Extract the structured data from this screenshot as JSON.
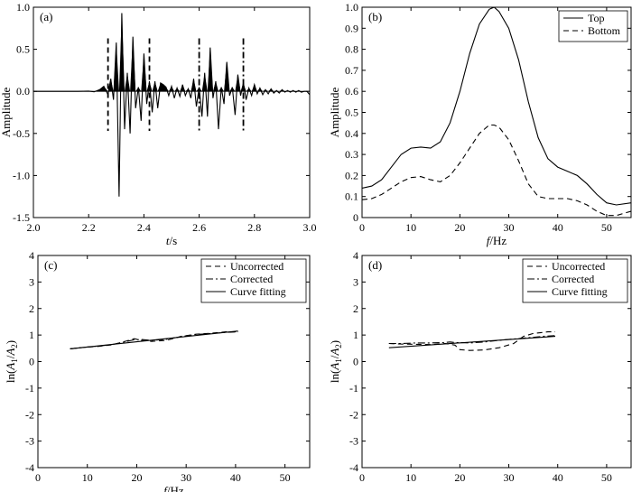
{
  "chart_data": [
    {
      "id": "a",
      "panel_label": "(a)",
      "type": "line",
      "title": "",
      "xlabel": "t/s",
      "ylabel": "Amplitude",
      "xlim": [
        2.0,
        3.0
      ],
      "ylim": [
        -1.5,
        1.0
      ],
      "xticks": [
        "2.0",
        "2.2",
        "2.4",
        "2.6",
        "2.8",
        "3.0"
      ],
      "yticks": [
        "-1.5",
        "-1.0",
        "-0.5",
        "0.0",
        "0.5",
        "1.0"
      ],
      "xtick_values": [
        2.0,
        2.2,
        2.4,
        2.6,
        2.8,
        3.0
      ],
      "ytick_values": [
        -1.5,
        -1.0,
        -0.5,
        0.0,
        0.5,
        1.0
      ],
      "grid": false,
      "series": [
        {
          "x": [
            2.0,
            2.16,
            2.2,
            2.22,
            2.24,
            2.255,
            2.27,
            2.28,
            2.29,
            2.3,
            2.31,
            2.32,
            2.33,
            2.34,
            2.35,
            2.36,
            2.37,
            2.38,
            2.39,
            2.4,
            2.41,
            2.42,
            2.43,
            2.44,
            2.45,
            2.46,
            2.47,
            2.48,
            2.49,
            2.5,
            2.51,
            2.52,
            2.53,
            2.54,
            2.55,
            2.56,
            2.57,
            2.58,
            2.59,
            2.6,
            2.61,
            2.62,
            2.63,
            2.64,
            2.65,
            2.66,
            2.67,
            2.68,
            2.69,
            2.7,
            2.71,
            2.72,
            2.73,
            2.74,
            2.75,
            2.76,
            2.77,
            2.78,
            2.79,
            2.8,
            2.81,
            2.82,
            2.83,
            2.84,
            2.85,
            2.86,
            2.87,
            2.88,
            2.89,
            2.9,
            2.91,
            2.92,
            2.93,
            2.94,
            2.95,
            2.96,
            2.97,
            2.98,
            2.99,
            3.0
          ],
          "y": [
            0.0,
            0.0,
            0.003,
            -0.005,
            0.02,
            0.06,
            -0.04,
            0.15,
            -0.1,
            0.58,
            -1.25,
            0.93,
            -0.45,
            0.22,
            -0.5,
            0.65,
            -0.2,
            0.05,
            -0.35,
            0.45,
            -0.15,
            0.12,
            -0.25,
            0.12,
            -0.2,
            0.1,
            0.08,
            0.05,
            -0.05,
            0.06,
            -0.08,
            0.04,
            -0.06,
            0.08,
            -0.05,
            0.03,
            -0.08,
            0.15,
            -0.18,
            0.05,
            -0.3,
            0.22,
            -0.3,
            0.52,
            -0.08,
            0.12,
            -0.45,
            0.05,
            -0.15,
            0.35,
            -0.05,
            0.05,
            -0.28,
            0.2,
            -0.05,
            0.1,
            -0.1,
            0.04,
            -0.05,
            0.08,
            -0.03,
            0.04,
            -0.04,
            0.02,
            -0.03,
            0.03,
            -0.02,
            0.01,
            -0.02,
            0.02,
            -0.01,
            0.01,
            -0.01,
            0.01,
            -0.01,
            0.01,
            -0.01,
            0.0,
            0.0,
            -0.04
          ]
        }
      ],
      "markers": [
        {
          "x": 2.27,
          "style": "dashed"
        },
        {
          "x": 2.42,
          "style": "dashed"
        },
        {
          "x": 2.6,
          "style": "dashdot"
        },
        {
          "x": 2.76,
          "style": "dashdot"
        }
      ]
    },
    {
      "id": "b",
      "panel_label": "(b)",
      "type": "line",
      "title": "",
      "xlabel": "f/Hz",
      "ylabel": "Amplitude",
      "xlim": [
        0,
        55
      ],
      "ylim": [
        0,
        1.0
      ],
      "xticks": [
        "0",
        "10",
        "20",
        "30",
        "40",
        "50"
      ],
      "yticks": [
        "0",
        "0.1",
        "0.2",
        "0.3",
        "0.4",
        "0.5",
        "0.6",
        "0.7",
        "0.8",
        "0.9",
        "1.0"
      ],
      "xtick_values": [
        0,
        10,
        20,
        30,
        40,
        50
      ],
      "ytick_values": [
        0,
        0.1,
        0.2,
        0.3,
        0.4,
        0.5,
        0.6,
        0.7,
        0.8,
        0.9,
        1.0
      ],
      "legend_position": "top-right",
      "grid": false,
      "series": [
        {
          "name": "Top",
          "style": "solid",
          "x": [
            0,
            2,
            4,
            6,
            8,
            10,
            12,
            14,
            16,
            18,
            20,
            22,
            24,
            26,
            27,
            28,
            30,
            32,
            34,
            36,
            38,
            40,
            42,
            44,
            46,
            48,
            50,
            52,
            55
          ],
          "y": [
            0.14,
            0.15,
            0.18,
            0.24,
            0.3,
            0.33,
            0.335,
            0.33,
            0.36,
            0.45,
            0.6,
            0.78,
            0.92,
            0.99,
            1.0,
            0.98,
            0.9,
            0.75,
            0.55,
            0.38,
            0.28,
            0.24,
            0.22,
            0.2,
            0.16,
            0.11,
            0.07,
            0.06,
            0.07
          ]
        },
        {
          "name": "Bottom",
          "style": "dashed",
          "x": [
            0,
            2,
            4,
            6,
            8,
            10,
            12,
            14,
            16,
            18,
            20,
            22,
            24,
            26,
            27,
            28,
            30,
            32,
            34,
            36,
            38,
            40,
            42,
            44,
            46,
            48,
            50,
            52,
            55
          ],
          "y": [
            0.085,
            0.09,
            0.11,
            0.14,
            0.17,
            0.19,
            0.195,
            0.18,
            0.17,
            0.2,
            0.26,
            0.33,
            0.4,
            0.44,
            0.44,
            0.43,
            0.37,
            0.27,
            0.16,
            0.1,
            0.09,
            0.09,
            0.09,
            0.08,
            0.06,
            0.03,
            0.01,
            0.01,
            0.03
          ]
        }
      ]
    },
    {
      "id": "c",
      "panel_label": "(c)",
      "type": "line",
      "title": "",
      "xlabel": "f/Hz",
      "ylabel": "ln(A1/A2)",
      "xlim": [
        0,
        55
      ],
      "ylim": [
        -4,
        4
      ],
      "xticks": [
        "0",
        "10",
        "20",
        "30",
        "40",
        "50"
      ],
      "yticks": [
        "-4",
        "-3",
        "-2",
        "-1",
        "0",
        "1",
        "2",
        "3",
        "4"
      ],
      "xtick_values": [
        0,
        10,
        20,
        30,
        40,
        50
      ],
      "ytick_values": [
        -4,
        -3,
        -2,
        -1,
        0,
        1,
        2,
        3,
        4
      ],
      "legend_position": "top-right",
      "grid": false,
      "series": [
        {
          "name": "Uncorrected",
          "style": "dashed",
          "x": [
            6.5,
            9,
            12,
            15,
            18,
            19.5,
            21,
            23,
            26,
            29,
            32,
            35,
            38,
            40.5
          ],
          "y": [
            0.48,
            0.53,
            0.57,
            0.63,
            0.78,
            0.86,
            0.8,
            0.76,
            0.8,
            0.95,
            1.03,
            1.07,
            1.12,
            1.12
          ]
        },
        {
          "name": "Corrected",
          "style": "dashdot",
          "x": [
            6.5,
            9,
            12,
            15,
            18,
            19.5,
            21,
            23,
            26,
            29,
            32,
            35,
            38,
            40.5
          ],
          "y": [
            0.48,
            0.53,
            0.58,
            0.64,
            0.76,
            0.82,
            0.83,
            0.8,
            0.84,
            0.94,
            1.02,
            1.06,
            1.1,
            1.12
          ]
        },
        {
          "name": "Curve fitting",
          "style": "solid",
          "x": [
            6.5,
            40.5
          ],
          "y": [
            0.48,
            1.15
          ]
        }
      ]
    },
    {
      "id": "d",
      "panel_label": "(d)",
      "type": "line",
      "title": "",
      "xlabel": "",
      "ylabel": "ln(A1/A2)",
      "xlim": [
        0,
        55
      ],
      "ylim": [
        -4,
        4
      ],
      "xticks": [
        "0",
        "10",
        "20",
        "30",
        "40",
        "50"
      ],
      "yticks": [
        "-4",
        "-3",
        "-2",
        "-1",
        "0",
        "1",
        "2",
        "3",
        "4"
      ],
      "xtick_values": [
        0,
        10,
        20,
        30,
        40,
        50
      ],
      "ytick_values": [
        -4,
        -3,
        -2,
        -1,
        0,
        1,
        2,
        3,
        4
      ],
      "legend_position": "top-right",
      "grid": false,
      "series": [
        {
          "name": "Uncorrected",
          "style": "dashed",
          "x": [
            5.5,
            8,
            11,
            14,
            17,
            19,
            20,
            22,
            25,
            28,
            31,
            33,
            35,
            38,
            39.5
          ],
          "y": [
            0.68,
            0.66,
            0.65,
            0.64,
            0.68,
            0.62,
            0.45,
            0.42,
            0.44,
            0.52,
            0.68,
            0.95,
            1.06,
            1.12,
            1.12
          ]
        },
        {
          "name": "Corrected",
          "style": "dashdot",
          "x": [
            5.5,
            8,
            11,
            14,
            17,
            18,
            19,
            22,
            25,
            28,
            31,
            34,
            37,
            39.5
          ],
          "y": [
            0.68,
            0.68,
            0.7,
            0.7,
            0.72,
            0.74,
            0.72,
            0.7,
            0.74,
            0.8,
            0.85,
            0.9,
            0.95,
            0.98
          ]
        },
        {
          "name": "Curve fitting",
          "style": "solid",
          "x": [
            5.5,
            39.5
          ],
          "y": [
            0.52,
            0.95
          ]
        }
      ]
    }
  ]
}
